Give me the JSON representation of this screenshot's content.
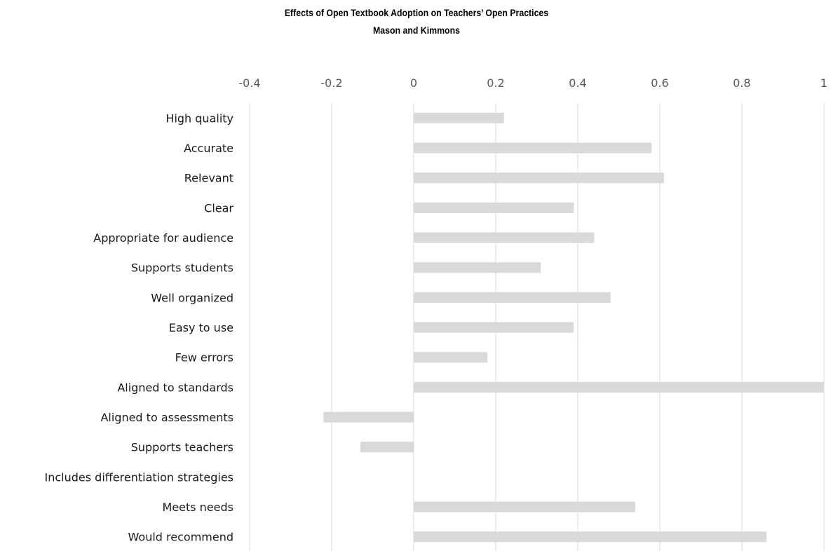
{
  "chart_data": {
    "type": "bar",
    "orientation": "horizontal",
    "title": "Effects of Open Textbook Adoption on Teachers’ Open Practices",
    "subtitle": "Mason and Kimmons",
    "categories": [
      "High quality",
      "Accurate",
      "Relevant",
      "Clear",
      "Appropriate for audience",
      "Supports students",
      "Well organized",
      "Easy to use",
      "Few errors",
      "Aligned to standards",
      "Aligned to assessments",
      "Supports teachers",
      "Includes differentiation strategies",
      "Meets needs",
      "Would recommend"
    ],
    "values": [
      0.22,
      0.58,
      0.61,
      0.39,
      0.44,
      0.31,
      0.48,
      0.39,
      0.18,
      1.0,
      -0.22,
      -0.13,
      0.0,
      0.54,
      0.86
    ],
    "xlim": [
      -0.4,
      1.0
    ],
    "xticks": [
      "-0.4",
      "-0.2",
      "0",
      "0.2",
      "0.4",
      "0.6",
      "0.8",
      "1"
    ],
    "xtick_values": [
      -0.4,
      -0.2,
      0,
      0.2,
      0.4,
      0.6,
      0.8,
      1.0
    ],
    "axis_position": "top",
    "grid": true,
    "legend": "none",
    "bar_color": "#d9d9d9",
    "grid_color": "#d9d9d9"
  }
}
